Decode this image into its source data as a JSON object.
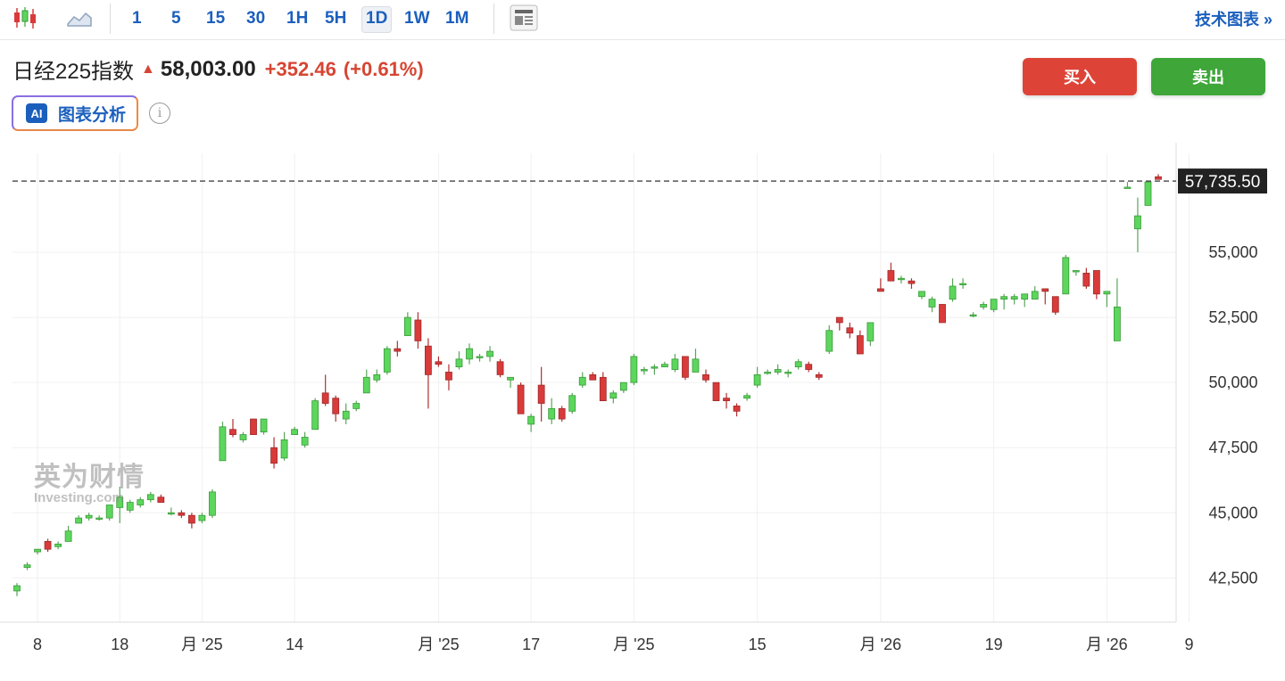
{
  "toolbar": {
    "candle_icon": "candlestick-icon",
    "area_icon": "area-chart-icon",
    "intervals": [
      "1",
      "5",
      "15",
      "30",
      "1H",
      "5H",
      "1D",
      "1W",
      "1M"
    ],
    "active_interval": "1D",
    "layout_icon": "layout-icon",
    "tech_chart_label": "技术图表 »"
  },
  "quote": {
    "name": "日经225指数",
    "price": "58,003.00",
    "change": "+352.46",
    "change_pct": "(+0.61%)",
    "direction": "up",
    "up_color": "#d64533"
  },
  "actions": {
    "buy_label": "买入",
    "sell_label": "卖出"
  },
  "ai": {
    "badge": "AI",
    "label": "图表分析",
    "info_icon": "info-icon"
  },
  "watermark": {
    "cn": "英为财情",
    "en": "Investing.com"
  },
  "chart_data": {
    "type": "candlestick",
    "ylim": [
      40800,
      58800
    ],
    "yticks": [
      42500,
      45000,
      47500,
      50000,
      52500,
      55000
    ],
    "ytick_labels": [
      "42,500",
      "45,000",
      "47,500",
      "50,000",
      "52,500",
      "55,000"
    ],
    "last_price_line": 57735.5,
    "last_price_label": "57,735.50",
    "x_tick_labels": [
      "8",
      "18",
      "月 '25",
      "14",
      "月 '25",
      "17",
      "月 '25",
      "15",
      "月 '26",
      "19",
      "月 '26",
      "9"
    ],
    "x_tick_index": [
      2,
      10,
      18,
      27,
      41,
      50,
      60,
      72,
      84,
      95,
      106,
      114
    ],
    "up_color": "#5cd65c",
    "down_color": "#d93a3a",
    "candles": [
      [
        42000,
        42300,
        41800,
        42200
      ],
      [
        42900,
        43100,
        42800,
        43000
      ],
      [
        43500,
        43600,
        43400,
        43600
      ],
      [
        43900,
        44000,
        43500,
        43600
      ],
      [
        43700,
        43900,
        43600,
        43800
      ],
      [
        43900,
        44500,
        43900,
        44300
      ],
      [
        44600,
        44900,
        44600,
        44800
      ],
      [
        44800,
        45000,
        44700,
        44900
      ],
      [
        44800,
        44900,
        44700,
        44800
      ],
      [
        44800,
        45300,
        44700,
        45300
      ],
      [
        45200,
        46000,
        44600,
        45600
      ],
      [
        45100,
        45500,
        45000,
        45400
      ],
      [
        45300,
        45600,
        45200,
        45500
      ],
      [
        45500,
        45800,
        45400,
        45700
      ],
      [
        45600,
        45700,
        45400,
        45400
      ],
      [
        45000,
        45200,
        44900,
        45000
      ],
      [
        45000,
        45100,
        44800,
        44900
      ],
      [
        44900,
        45000,
        44400,
        44600
      ],
      [
        44700,
        45000,
        44600,
        44900
      ],
      [
        44900,
        45900,
        44800,
        45800
      ],
      [
        47000,
        48500,
        47000,
        48300
      ],
      [
        48200,
        48600,
        47900,
        48000
      ],
      [
        47800,
        48100,
        47700,
        48000
      ],
      [
        48600,
        48600,
        48100,
        48000
      ],
      [
        48100,
        48500,
        48000,
        48600
      ],
      [
        47500,
        47900,
        46700,
        46900
      ],
      [
        47100,
        48100,
        47000,
        47800
      ],
      [
        48000,
        48300,
        48000,
        48200
      ],
      [
        47600,
        48100,
        47500,
        47900
      ],
      [
        48200,
        49400,
        48200,
        49300
      ],
      [
        49600,
        50300,
        49100,
        49200
      ],
      [
        49400,
        49500,
        48500,
        48800
      ],
      [
        48600,
        49200,
        48400,
        48900
      ],
      [
        49000,
        49300,
        48900,
        49200
      ],
      [
        49600,
        50500,
        49600,
        50200
      ],
      [
        50100,
        50500,
        50000,
        50300
      ],
      [
        50400,
        51400,
        50300,
        51300
      ],
      [
        51300,
        51600,
        51000,
        51200
      ],
      [
        51800,
        52700,
        51800,
        52500
      ],
      [
        52400,
        52700,
        51300,
        51600
      ],
      [
        51400,
        51700,
        49000,
        50300
      ],
      [
        50800,
        51000,
        50600,
        50700
      ],
      [
        50400,
        50700,
        49700,
        50100
      ],
      [
        50600,
        51200,
        50500,
        50900
      ],
      [
        50900,
        51500,
        50700,
        51300
      ],
      [
        51000,
        51100,
        50800,
        51000
      ],
      [
        51000,
        51400,
        50800,
        51200
      ],
      [
        50800,
        50900,
        50200,
        50300
      ],
      [
        50100,
        50200,
        49800,
        50200
      ],
      [
        49900,
        50000,
        48800,
        48800
      ],
      [
        48400,
        48800,
        48100,
        48700
      ],
      [
        49900,
        50600,
        48500,
        49200
      ],
      [
        48600,
        49400,
        48400,
        49000
      ],
      [
        49000,
        49100,
        48500,
        48600
      ],
      [
        48900,
        49600,
        48800,
        49500
      ],
      [
        49900,
        50400,
        49800,
        50200
      ],
      [
        50300,
        50400,
        50100,
        50100
      ],
      [
        50200,
        50400,
        49400,
        49300
      ],
      [
        49400,
        49700,
        49200,
        49600
      ],
      [
        49700,
        50000,
        49600,
        50000
      ],
      [
        50000,
        51100,
        49900,
        51000
      ],
      [
        50500,
        50600,
        50300,
        50500
      ],
      [
        50600,
        50700,
        50300,
        50600
      ],
      [
        50600,
        50800,
        50600,
        50700
      ],
      [
        50500,
        51100,
        50400,
        50900
      ],
      [
        51000,
        51000,
        50100,
        50200
      ],
      [
        50400,
        51300,
        50400,
        50900
      ],
      [
        50300,
        50500,
        50000,
        50100
      ],
      [
        50000,
        50000,
        49300,
        49300
      ],
      [
        49400,
        49600,
        49000,
        49300
      ],
      [
        49100,
        49200,
        48700,
        48900
      ],
      [
        49400,
        49600,
        49300,
        49500
      ],
      [
        49900,
        50600,
        49800,
        50300
      ],
      [
        50400,
        50500,
        50300,
        50400
      ],
      [
        50400,
        50700,
        50300,
        50500
      ],
      [
        50400,
        50500,
        50200,
        50400
      ],
      [
        50600,
        50900,
        50500,
        50800
      ],
      [
        50700,
        50800,
        50400,
        50500
      ],
      [
        50300,
        50400,
        50100,
        50200
      ],
      [
        51200,
        52200,
        51100,
        52000
      ],
      [
        52500,
        52500,
        52000,
        52300
      ],
      [
        52100,
        52300,
        51700,
        51900
      ],
      [
        51800,
        52000,
        51100,
        51100
      ],
      [
        51600,
        52200,
        51400,
        52300
      ],
      [
        53600,
        54000,
        53600,
        53500
      ],
      [
        54300,
        54600,
        54000,
        53900
      ],
      [
        54000,
        54100,
        53800,
        54000
      ],
      [
        53900,
        54000,
        53600,
        53800
      ],
      [
        53300,
        53500,
        53200,
        53500
      ],
      [
        52900,
        53300,
        52700,
        53200
      ],
      [
        53000,
        53000,
        52300,
        52300
      ],
      [
        53200,
        54000,
        53100,
        53700
      ],
      [
        53800,
        54000,
        53600,
        53800
      ],
      [
        52600,
        52700,
        52500,
        52600
      ],
      [
        52900,
        53100,
        52800,
        53000
      ],
      [
        52800,
        53200,
        52700,
        53200
      ],
      [
        53200,
        53400,
        52800,
        53300
      ],
      [
        53200,
        53400,
        53000,
        53300
      ],
      [
        53200,
        53300,
        52900,
        53400
      ],
      [
        53200,
        53700,
        53200,
        53500
      ],
      [
        53600,
        53600,
        53000,
        53500
      ],
      [
        53300,
        53300,
        52600,
        52700
      ],
      [
        53400,
        54900,
        53400,
        54800
      ],
      [
        54300,
        54300,
        54100,
        54300
      ],
      [
        54200,
        54400,
        53600,
        53700
      ],
      [
        54300,
        54300,
        53200,
        53400
      ],
      [
        53400,
        53500,
        52900,
        53500
      ],
      [
        51600,
        54000,
        51600,
        52900
      ],
      [
        57500,
        57700,
        57500,
        57500
      ],
      [
        55900,
        57100,
        55000,
        56400
      ],
      [
        56800,
        57600,
        56800,
        57700
      ],
      [
        57900,
        58000,
        57800,
        57800
      ]
    ]
  }
}
